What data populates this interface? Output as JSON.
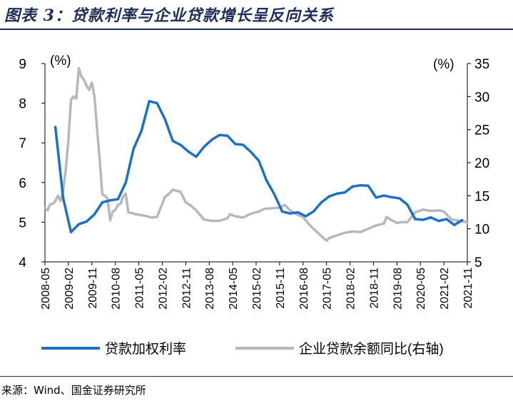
{
  "title": "图表 3：贷款利率与企业贷款增长呈反向关系",
  "source": "来源：Wind、国金证券研究所",
  "colors": {
    "blue": "#1a72c8",
    "gray": "#b8b8b8",
    "axis": "#000000"
  },
  "chart_data": {
    "type": "line",
    "left_unit": "(%)",
    "right_unit": "(%)",
    "left_ylim": [
      4,
      9
    ],
    "right_ylim": [
      5,
      35
    ],
    "left_ticks": [
      "4",
      "5",
      "6",
      "7",
      "8",
      "9"
    ],
    "right_ticks": [
      "5",
      "10",
      "15",
      "20",
      "25",
      "30",
      "35"
    ],
    "x_range": [
      "2008-05",
      "2021-11"
    ],
    "x_ticks": [
      "2008-05",
      "2009-02",
      "2009-11",
      "2010-08",
      "2011-05",
      "2012-02",
      "2012-11",
      "2013-08",
      "2014-05",
      "2015-02",
      "2015-11",
      "2016-08",
      "2017-05",
      "2018-02",
      "2018-11",
      "2019-08",
      "2020-05",
      "2021-02",
      "2021-11"
    ],
    "series": [
      {
        "name": "贷款加权利率",
        "axis": "left",
        "points": [
          [
            "2008-09",
            7.4
          ],
          [
            "2008-12",
            5.6
          ],
          [
            "2009-03",
            4.75
          ],
          [
            "2009-06",
            4.95
          ],
          [
            "2009-09",
            5.02
          ],
          [
            "2009-12",
            5.2
          ],
          [
            "2010-03",
            5.5
          ],
          [
            "2010-06",
            5.55
          ],
          [
            "2010-09",
            5.58
          ],
          [
            "2010-12",
            6.0
          ],
          [
            "2011-03",
            6.85
          ],
          [
            "2011-06",
            7.3
          ],
          [
            "2011-09",
            8.05
          ],
          [
            "2011-12",
            8.0
          ],
          [
            "2012-03",
            7.6
          ],
          [
            "2012-06",
            7.05
          ],
          [
            "2012-09",
            6.95
          ],
          [
            "2012-12",
            6.78
          ],
          [
            "2013-03",
            6.65
          ],
          [
            "2013-06",
            6.9
          ],
          [
            "2013-09",
            7.08
          ],
          [
            "2013-12",
            7.2
          ],
          [
            "2014-03",
            7.18
          ],
          [
            "2014-06",
            6.97
          ],
          [
            "2014-09",
            6.95
          ],
          [
            "2014-12",
            6.77
          ],
          [
            "2015-03",
            6.55
          ],
          [
            "2015-06",
            6.05
          ],
          [
            "2015-09",
            5.7
          ],
          [
            "2015-12",
            5.27
          ],
          [
            "2016-03",
            5.22
          ],
          [
            "2016-06",
            5.25
          ],
          [
            "2016-09",
            5.15
          ],
          [
            "2016-12",
            5.27
          ],
          [
            "2017-03",
            5.5
          ],
          [
            "2017-06",
            5.65
          ],
          [
            "2017-09",
            5.72
          ],
          [
            "2017-12",
            5.75
          ],
          [
            "2018-03",
            5.9
          ],
          [
            "2018-06",
            5.93
          ],
          [
            "2018-09",
            5.92
          ],
          [
            "2018-12",
            5.62
          ],
          [
            "2019-03",
            5.67
          ],
          [
            "2019-06",
            5.63
          ],
          [
            "2019-09",
            5.6
          ],
          [
            "2019-12",
            5.44
          ],
          [
            "2020-03",
            5.08
          ],
          [
            "2020-06",
            5.06
          ],
          [
            "2020-09",
            5.12
          ],
          [
            "2020-12",
            5.03
          ],
          [
            "2021-03",
            5.08
          ],
          [
            "2021-06",
            4.93
          ],
          [
            "2021-09",
            5.05
          ]
        ]
      },
      {
        "name": "企业贷款余额同比(右轴)",
        "axis": "right",
        "points": [
          [
            "2008-05",
            13.2
          ],
          [
            "2008-06",
            12.8
          ],
          [
            "2008-07",
            13.7
          ],
          [
            "2008-08",
            13.8
          ],
          [
            "2008-09",
            14.2
          ],
          [
            "2008-10",
            15.0
          ],
          [
            "2008-11",
            14.2
          ],
          [
            "2008-12",
            15.8
          ],
          [
            "2009-01",
            19.0
          ],
          [
            "2009-02",
            23.5
          ],
          [
            "2009-03",
            29.5
          ],
          [
            "2009-04",
            30.0
          ],
          [
            "2009-05",
            29.7
          ],
          [
            "2009-06",
            34.3
          ],
          [
            "2009-07",
            33.0
          ],
          [
            "2009-08",
            32.5
          ],
          [
            "2009-09",
            31.6
          ],
          [
            "2009-10",
            31.0
          ],
          [
            "2009-11",
            32.1
          ],
          [
            "2009-12",
            30.0
          ],
          [
            "2010-01",
            25.0
          ],
          [
            "2010-02",
            20.5
          ],
          [
            "2010-03",
            15.2
          ],
          [
            "2010-04",
            15.0
          ],
          [
            "2010-05",
            14.6
          ],
          [
            "2010-06",
            11.3
          ],
          [
            "2010-07",
            12.6
          ],
          [
            "2010-08",
            12.9
          ],
          [
            "2010-09",
            13.6
          ],
          [
            "2010-10",
            13.8
          ],
          [
            "2010-11",
            14.9
          ],
          [
            "2010-12",
            15.3
          ],
          [
            "2011-01",
            12.5
          ],
          [
            "2011-04",
            12.2
          ],
          [
            "2011-07",
            12.0
          ],
          [
            "2011-10",
            11.7
          ],
          [
            "2011-12",
            11.8
          ],
          [
            "2012-03",
            14.8
          ],
          [
            "2012-04",
            15.1
          ],
          [
            "2012-06",
            15.9
          ],
          [
            "2012-09",
            15.6
          ],
          [
            "2012-11",
            14.0
          ],
          [
            "2013-01",
            13.5
          ],
          [
            "2013-03",
            12.8
          ],
          [
            "2013-06",
            11.4
          ],
          [
            "2013-09",
            11.2
          ],
          [
            "2013-12",
            11.2
          ],
          [
            "2014-03",
            11.6
          ],
          [
            "2014-04",
            12.2
          ],
          [
            "2014-06",
            11.9
          ],
          [
            "2014-09",
            11.7
          ],
          [
            "2014-12",
            12.3
          ],
          [
            "2015-03",
            12.6
          ],
          [
            "2015-05",
            13.0
          ],
          [
            "2015-08",
            13.1
          ],
          [
            "2015-11",
            13.2
          ],
          [
            "2016-01",
            13.6
          ],
          [
            "2016-03",
            12.8
          ],
          [
            "2016-06",
            12.1
          ],
          [
            "2016-08",
            11.8
          ],
          [
            "2016-10",
            10.8
          ],
          [
            "2016-12",
            10.0
          ],
          [
            "2017-03",
            8.9
          ],
          [
            "2017-05",
            8.2
          ],
          [
            "2017-06",
            8.6
          ],
          [
            "2017-09",
            9.0
          ],
          [
            "2017-12",
            9.4
          ],
          [
            "2018-03",
            9.6
          ],
          [
            "2018-06",
            9.5
          ],
          [
            "2018-09",
            10.0
          ],
          [
            "2018-12",
            10.5
          ],
          [
            "2019-03",
            10.8
          ],
          [
            "2019-04",
            11.8
          ],
          [
            "2019-06",
            11.3
          ],
          [
            "2019-08",
            10.9
          ],
          [
            "2019-10",
            11.0
          ],
          [
            "2019-12",
            11.0
          ],
          [
            "2020-03",
            12.5
          ],
          [
            "2020-06",
            12.9
          ],
          [
            "2020-09",
            12.7
          ],
          [
            "2020-12",
            12.8
          ],
          [
            "2021-02",
            12.6
          ],
          [
            "2021-05",
            11.4
          ],
          [
            "2021-08",
            11.2
          ],
          [
            "2021-11",
            11.0
          ]
        ]
      }
    ]
  }
}
